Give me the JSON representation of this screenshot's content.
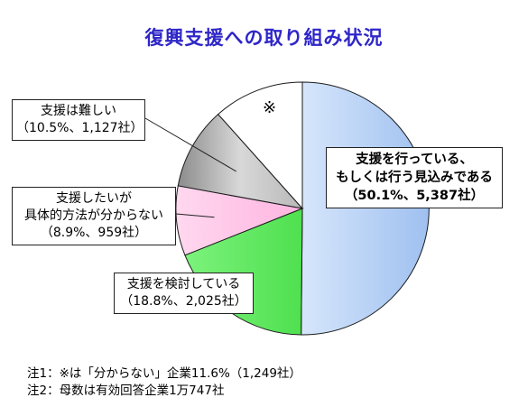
{
  "chart_data": {
    "type": "pie",
    "title": "復興支援への取り組み状況",
    "slices": [
      {
        "lines": [
          "支援を行っている、",
          "もしくは行う見込みである",
          "（50.1%、5,387社）"
        ],
        "value": 50.1,
        "count": 5387,
        "color": "#b3cdf6"
      },
      {
        "lines": [
          "支援を検討している",
          "（18.8%、2,025社）"
        ],
        "value": 18.8,
        "count": 2025,
        "color": "#66ee66"
      },
      {
        "lines": [
          "支援したいが",
          "具体的方法が分からない",
          "（8.9%、959社）"
        ],
        "value": 8.9,
        "count": 959,
        "color": "#ffc6e8"
      },
      {
        "lines": [
          "支援は難しい",
          "（10.5%、1,127社）"
        ],
        "value": 10.5,
        "count": 1127,
        "color": "#c0c0c0"
      },
      {
        "mark": "※",
        "value": 11.6,
        "count": 1249,
        "color": "#ffffff"
      }
    ]
  },
  "notes": [
    "注1：※は「分からない」企業11.6%（1,249社）",
    "注2：母数は有効回答企業1万747社"
  ]
}
